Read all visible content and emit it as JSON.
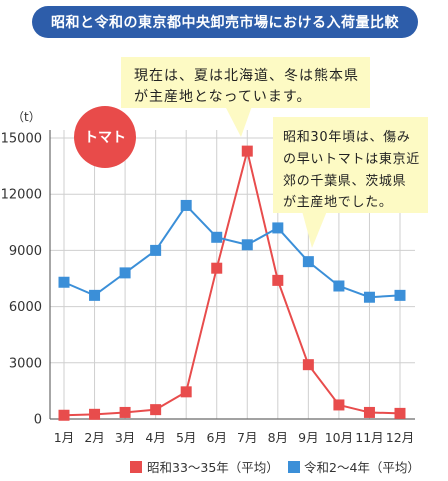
{
  "badge": {
    "label": "トマト"
  },
  "callouts": [
    {
      "lines": [
        "現在は、夏は北海道、冬は熊本県",
        "が主産地となっています。"
      ]
    },
    {
      "lines": [
        "昭和30年頃は、傷み",
        "の早いトマトは東京近",
        "郊の千葉県、茨城県",
        "が主産地でした。"
      ]
    }
  ],
  "colors": {
    "title_banner": "#2d5daa",
    "badge": "#e84b4a",
    "callout_background": "#fdfac4",
    "gridline": "#cfcfcf",
    "axis": "#6b6b6b"
  },
  "chart_data": {
    "type": "line",
    "title": "昭和と令和の東京都中央卸売市場における入荷量比較",
    "ylabel": "（t）",
    "categories": [
      "1月",
      "2月",
      "3月",
      "4月",
      "5月",
      "6月",
      "7月",
      "8月",
      "9月",
      "10月",
      "11月",
      "12月"
    ],
    "ylim": [
      0,
      15000
    ],
    "yticks": [
      0,
      3000,
      6000,
      9000,
      12000,
      15000
    ],
    "grid": true,
    "legend": "bottom-center",
    "series": [
      {
        "name": "昭和33～35年（平均）",
        "color": "#e84c4c",
        "marker": "square",
        "values": [
          200,
          250,
          350,
          500,
          1450,
          8050,
          14300,
          7400,
          2900,
          750,
          350,
          300
        ]
      },
      {
        "name": "令和2～4年（平均）",
        "color": "#3b8fd8",
        "marker": "square",
        "values": [
          7300,
          6600,
          7800,
          9000,
          11400,
          9700,
          9300,
          10200,
          8400,
          7100,
          6500,
          6600
        ]
      }
    ]
  }
}
